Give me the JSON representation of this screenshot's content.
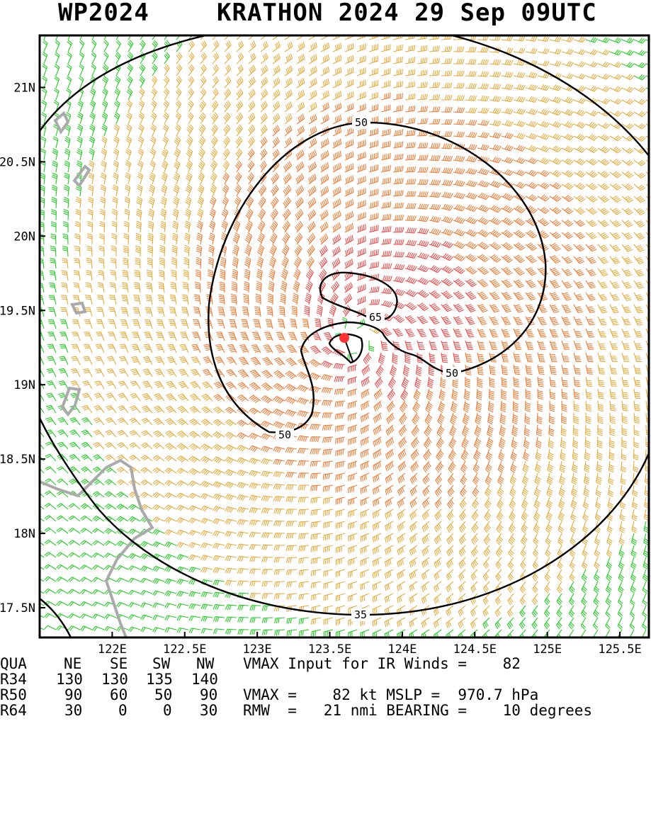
{
  "header": {
    "basin_id": "WP2024",
    "storm_title": "KRATHON 2024 29 Sep 09UTC"
  },
  "map": {
    "lon_ticks": [
      "122E",
      "122.5E",
      "123E",
      "123.5E",
      "124E",
      "124.5E",
      "125E",
      "125.5E"
    ],
    "lat_ticks": [
      "21N",
      "20.5N",
      "20N",
      "19.5N",
      "19N",
      "18.5N",
      "18N",
      "17.5N"
    ],
    "lon_values": [
      122.0,
      122.5,
      123.0,
      123.5,
      124.0,
      124.5,
      125.0,
      125.5
    ],
    "lat_values": [
      21.0,
      20.5,
      20.0,
      19.5,
      19.0,
      18.5,
      18.0,
      17.5
    ],
    "lon_range": [
      121.5,
      125.7
    ],
    "lat_range": [
      17.3,
      21.35
    ],
    "center": {
      "lon": 123.7,
      "lat": 19.32
    },
    "contour_labels": [
      "50",
      "65",
      "50",
      "50",
      "35"
    ],
    "wind_colors": {
      "below_35": "#22cc22",
      "35_to_50": "#e8a93a",
      "50_to_65": "#ef7a34",
      "above_65": "#ef4a4a"
    },
    "center_color": "#ff3333",
    "contour_color": "#000000",
    "coast_color": "#aaaaaa"
  },
  "info": {
    "header_row": [
      "QUA",
      "NE",
      "SE",
      "SW",
      "NW"
    ],
    "rows": [
      {
        "label": "R34",
        "values": [
          "130",
          "130",
          "135",
          "140"
        ]
      },
      {
        "label": "R50",
        "values": [
          "90",
          "60",
          "50",
          "90"
        ]
      },
      {
        "label": "R64",
        "values": [
          "30",
          "0",
          "0",
          "30"
        ]
      }
    ],
    "vmax_input_line": "VMAX Input for IR Winds =    82",
    "vmax_mslp_line": "VMAX =    82 kt MSLP =  970.7 hPa",
    "rmw_bearing_line": "RMW  =   21 nmi BEARING =    10 degrees"
  }
}
